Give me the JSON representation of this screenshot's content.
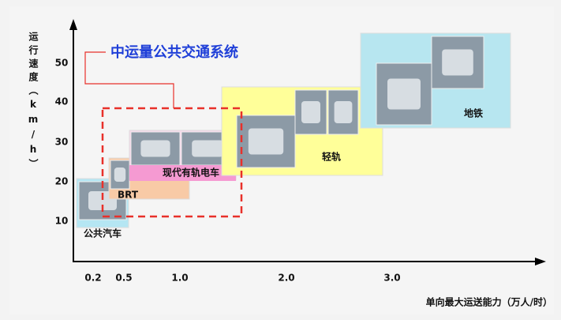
{
  "title": "中运量公共交通系统",
  "y_axis": {
    "label": "运行速度（km/h）",
    "ticks": [
      10,
      20,
      30,
      40,
      50
    ]
  },
  "x_axis": {
    "label": "单向最大运送能力（万人/时）",
    "ticks": [
      "0.2",
      "0.5",
      "1.0",
      "2.0",
      "3.0"
    ]
  },
  "modes": [
    {
      "label": "公共汽车"
    },
    {
      "label": "BRT"
    },
    {
      "label": "现代有轨电车"
    },
    {
      "label": "轻轨"
    },
    {
      "label": "地铁"
    }
  ]
}
